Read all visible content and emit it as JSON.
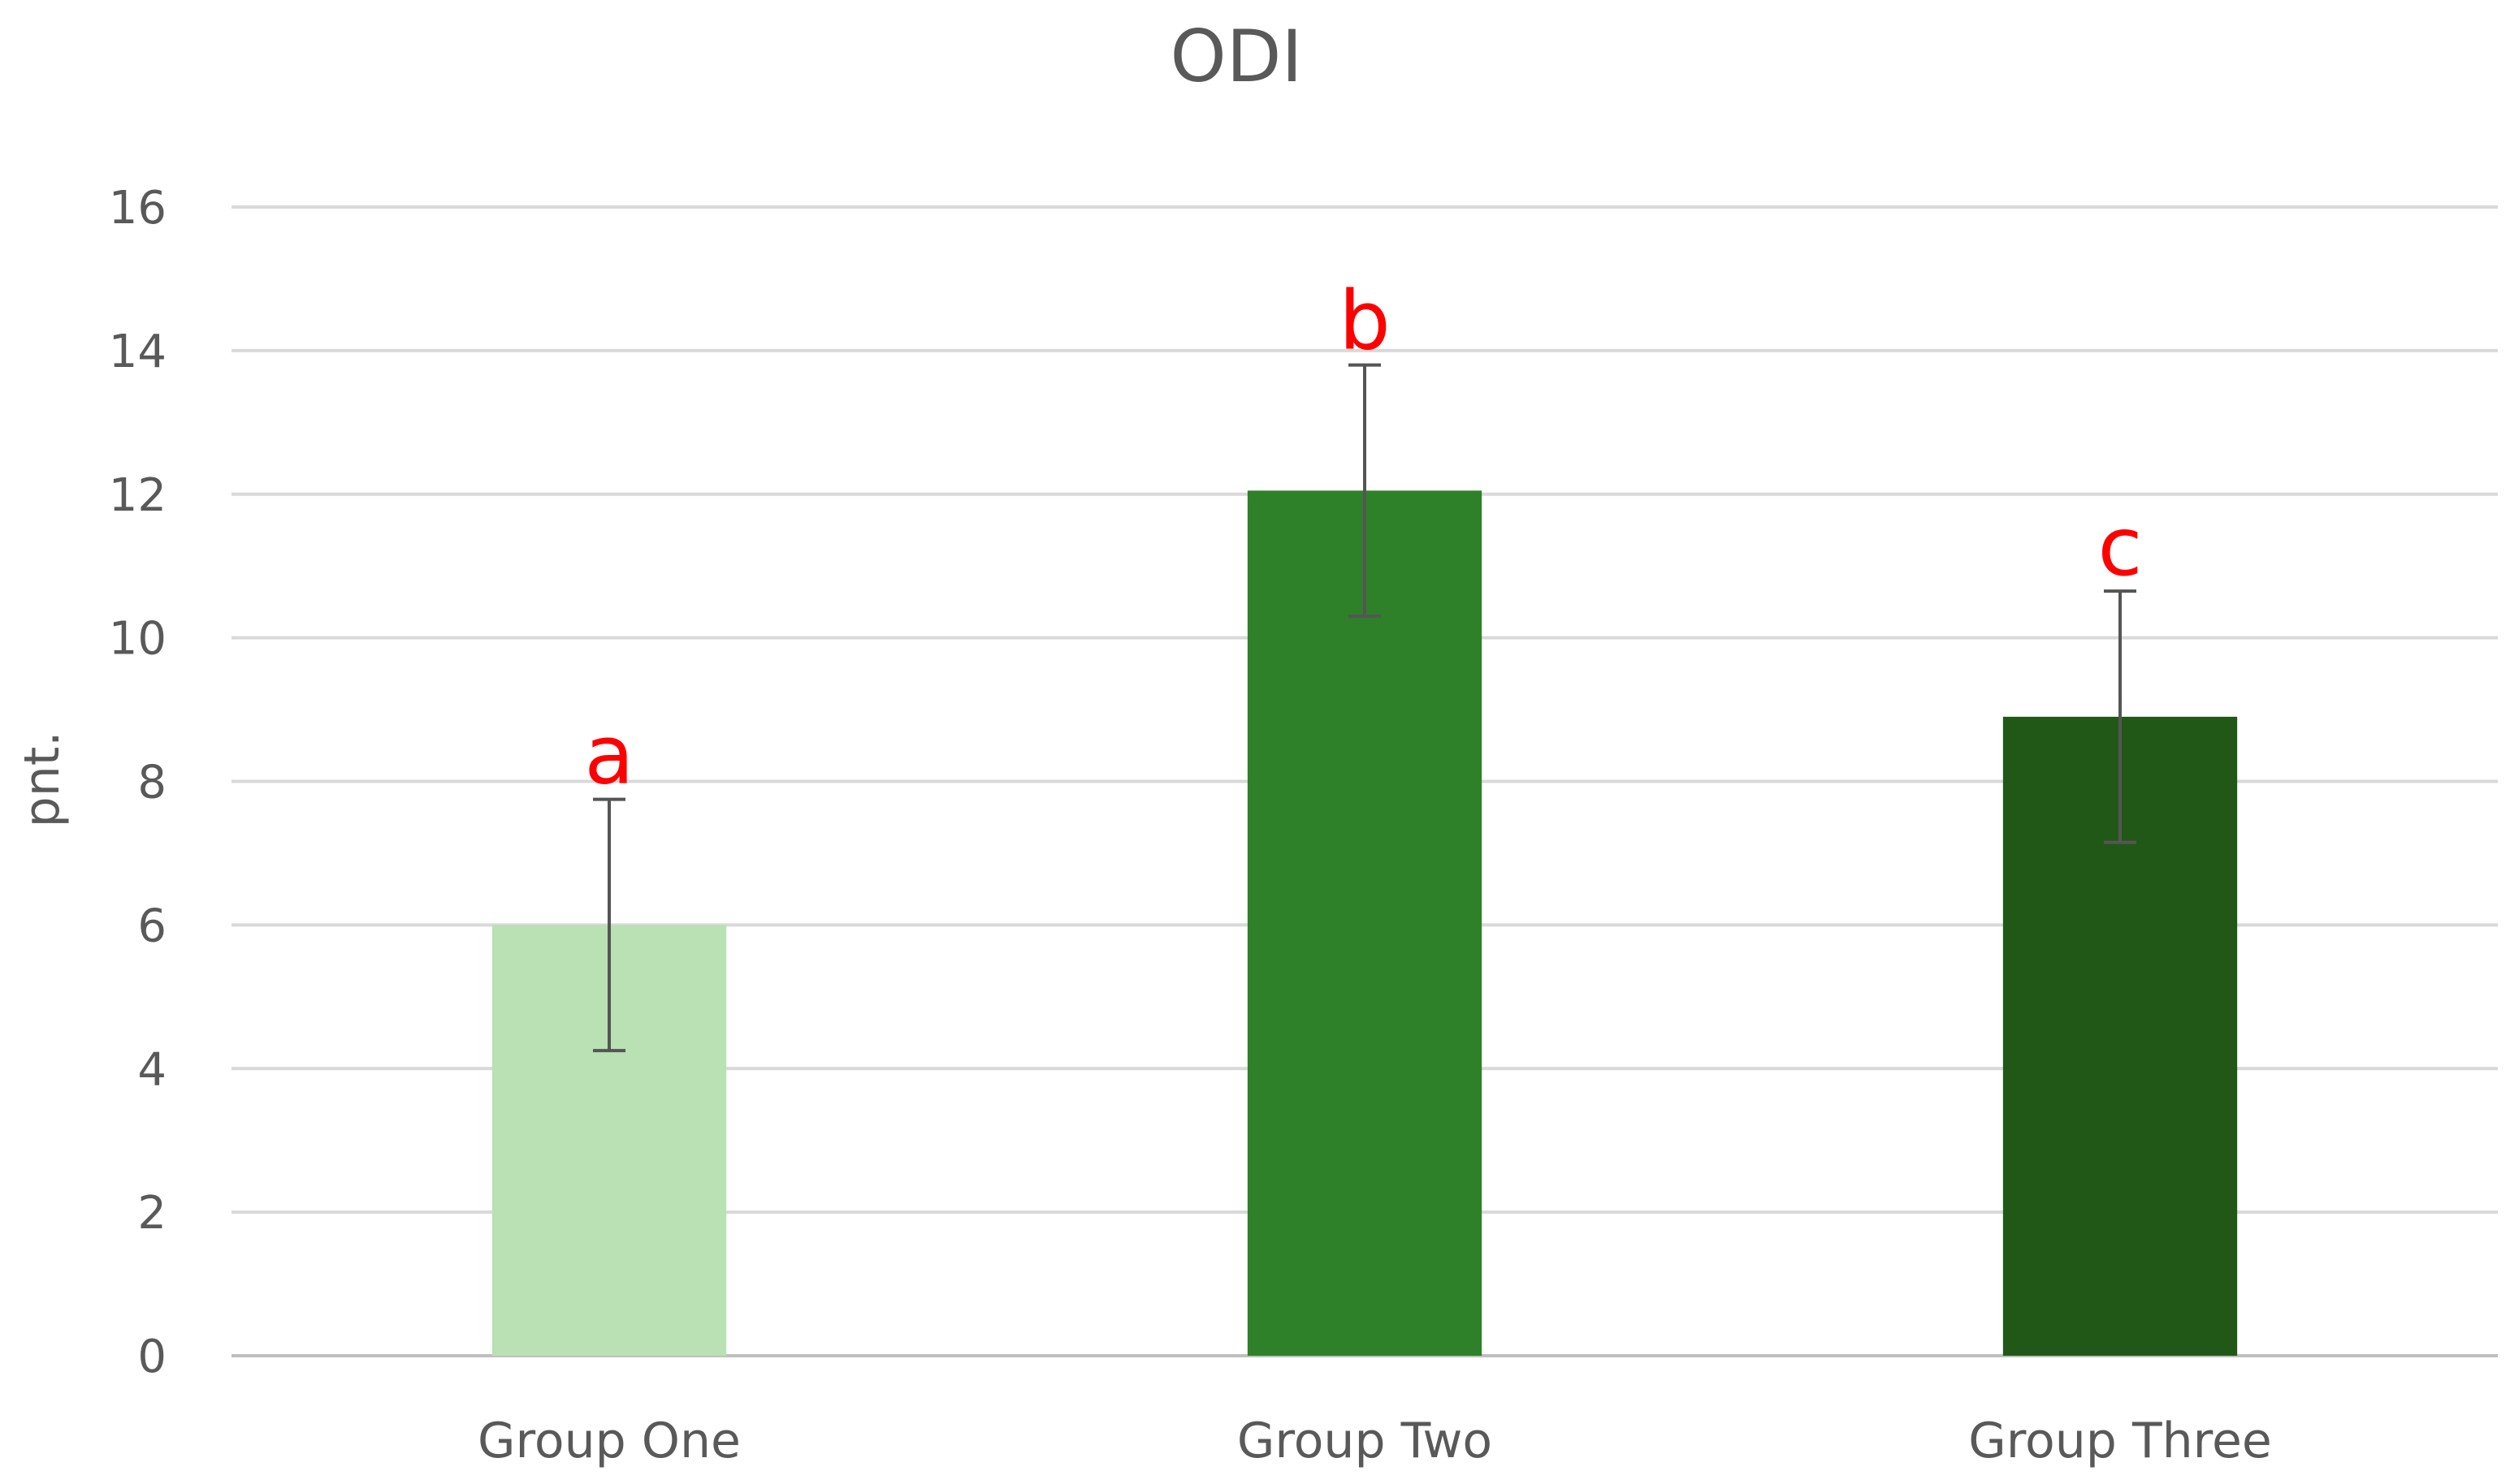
{
  "chart_data": {
    "type": "bar",
    "title": "ODI",
    "xlabel": "",
    "ylabel": "pnt.",
    "ylim": [
      0,
      16
    ],
    "yticks": [
      0,
      2,
      4,
      6,
      8,
      10,
      12,
      14,
      16
    ],
    "categories": [
      "Group One",
      "Group Two",
      "Group Three"
    ],
    "values": [
      6.0,
      12.05,
      8.9
    ],
    "error": [
      1.75,
      1.75,
      1.75
    ],
    "annotations": [
      "a",
      "b",
      "c"
    ],
    "colors": [
      "#b9e1b3",
      "#2e8129",
      "#215818"
    ],
    "annotation_color": "#ff0000",
    "grid": true,
    "legend": "none"
  }
}
